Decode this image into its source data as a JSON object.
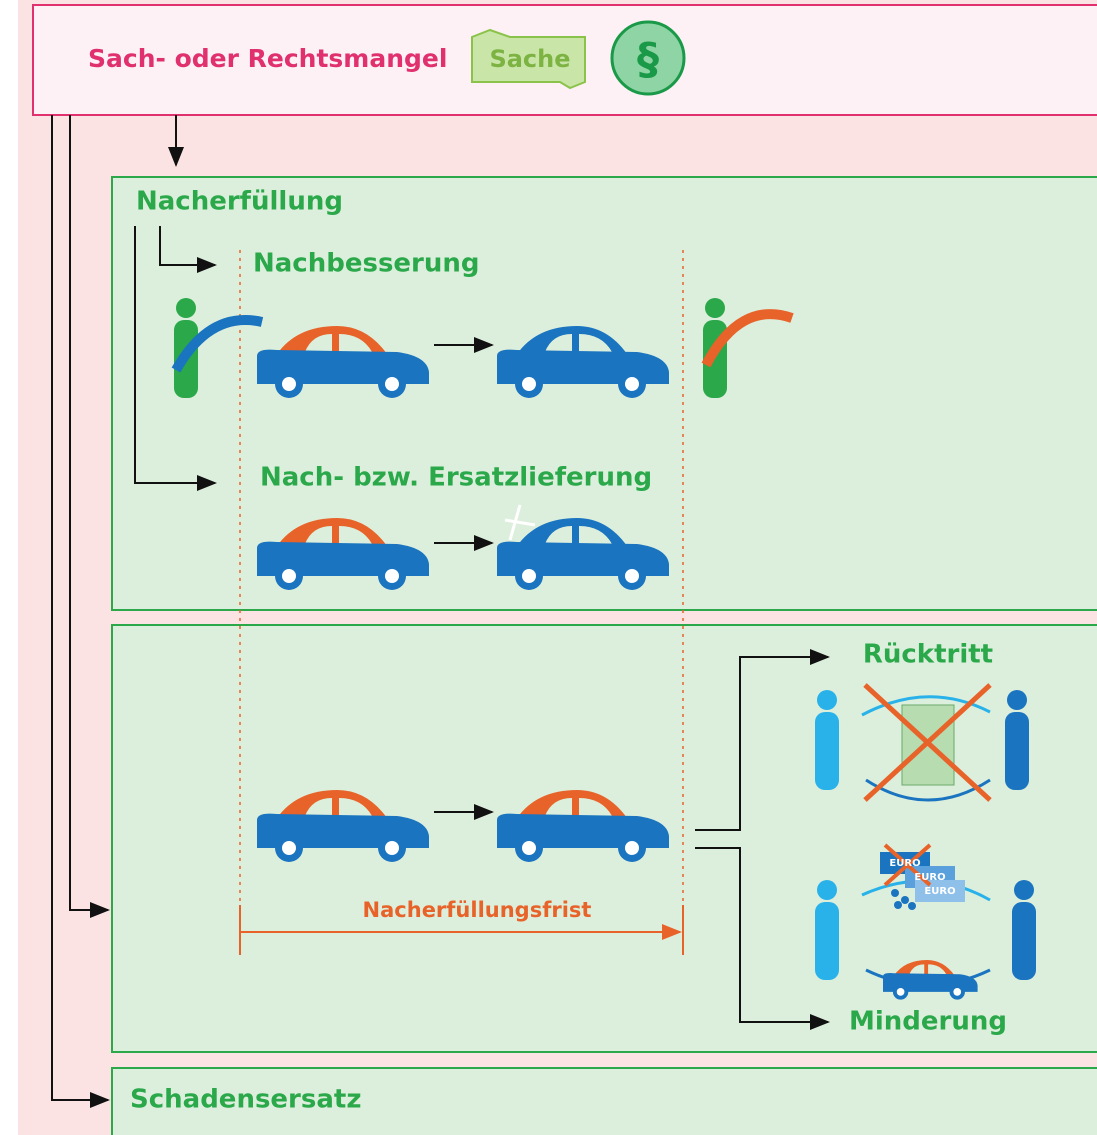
{
  "header": {
    "title": "Sach- oder Rechtsmangel",
    "icon_sache": "Sache",
    "icon_paragraph": "§"
  },
  "nacherfuellung": {
    "title": "Nacherfüllung",
    "nachbesserung": "Nachbesserung",
    "ersatzlieferung": "Nach- bzw. Ersatzlieferung"
  },
  "folgen": {
    "frist": "Nacherfüllungsfrist",
    "ruecktritt": "Rücktritt",
    "minderung": "Minderung",
    "euro_notes": [
      "EURO",
      "EURO",
      "EURO"
    ]
  },
  "schadensersatz": {
    "title": "Schadensersatz"
  }
}
